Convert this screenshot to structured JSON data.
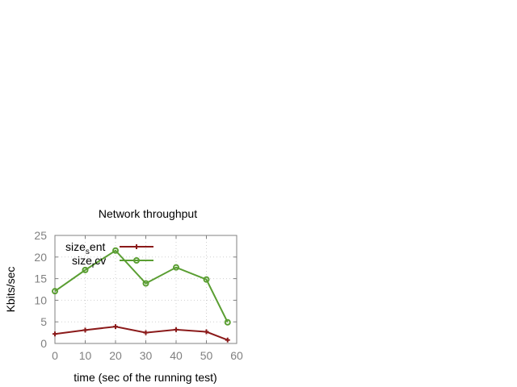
{
  "chart_data": {
    "type": "line",
    "title": "Network throughput",
    "xlabel": "time (sec of the running test)",
    "ylabel": "Kbits/sec",
    "xlim": [
      0,
      60
    ],
    "ylim": [
      0,
      25
    ],
    "x_ticks": [
      0,
      10,
      20,
      30,
      40,
      50,
      60
    ],
    "y_ticks": [
      0,
      5,
      10,
      15,
      20,
      25
    ],
    "grid": true,
    "legend_position": "top-left",
    "series": [
      {
        "name_main": "size",
        "name_sub": "s",
        "name_rest": "ent",
        "color": "#8b1a1a",
        "marker": "plus",
        "points": [
          {
            "x": 0,
            "y": 2.2
          },
          {
            "x": 10,
            "y": 3.1
          },
          {
            "x": 20,
            "y": 3.9
          },
          {
            "x": 30,
            "y": 2.5
          },
          {
            "x": 40,
            "y": 3.2
          },
          {
            "x": 50,
            "y": 2.7
          },
          {
            "x": 57,
            "y": 0.8
          }
        ]
      },
      {
        "name_main": "size",
        "name_sub": "r",
        "name_rest": "cv",
        "color": "#5a9e32",
        "marker": "circle",
        "points": [
          {
            "x": 0,
            "y": 12.1
          },
          {
            "x": 10,
            "y": 17.0
          },
          {
            "x": 20,
            "y": 21.5
          },
          {
            "x": 30,
            "y": 13.9
          },
          {
            "x": 40,
            "y": 17.6
          },
          {
            "x": 50,
            "y": 14.8
          },
          {
            "x": 57,
            "y": 4.9
          }
        ]
      }
    ]
  }
}
